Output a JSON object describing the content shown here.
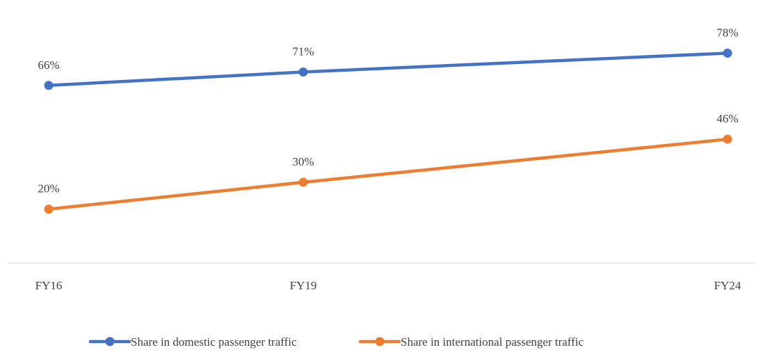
{
  "chart_data": {
    "type": "line",
    "title": "",
    "xlabel": "",
    "ylabel": "",
    "categories": [
      "FY16",
      "FY19",
      "FY24"
    ],
    "x_positions": [
      2016,
      2019,
      2024
    ],
    "ylim": [
      0,
      90
    ],
    "grid": false,
    "legend_position": "bottom",
    "series": [
      {
        "name": "Share in domestic passenger traffic",
        "values": [
          66,
          71,
          78
        ],
        "labels": [
          "66%",
          "71%",
          "78%"
        ],
        "color": "#4472C4"
      },
      {
        "name": "Share in international passenger traffic",
        "values": [
          20,
          30,
          46
        ],
        "labels": [
          "20%",
          "30%",
          "46%"
        ],
        "color": "#ED7D31"
      }
    ]
  }
}
